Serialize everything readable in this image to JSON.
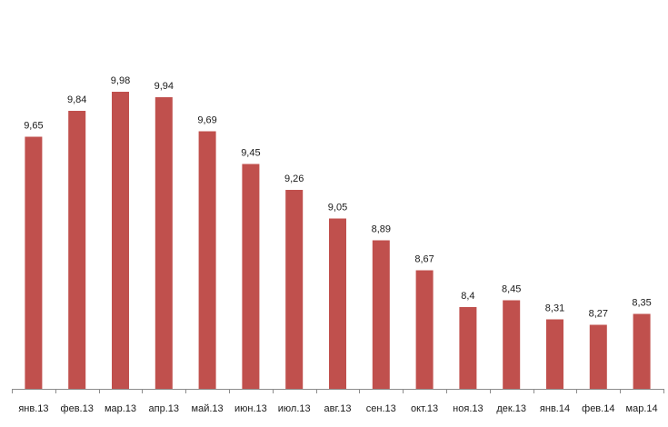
{
  "chart_data": {
    "type": "bar",
    "categories": [
      "янв.13",
      "фев.13",
      "мар.13",
      "апр.13",
      "май.13",
      "июн.13",
      "июл.13",
      "авг.13",
      "сен.13",
      "окт.13",
      "ноя.13",
      "дек.13",
      "янв.14",
      "фев.14",
      "мар.14"
    ],
    "values": [
      9.65,
      9.84,
      9.98,
      9.94,
      9.69,
      9.45,
      9.26,
      9.05,
      8.89,
      8.67,
      8.4,
      8.45,
      8.31,
      8.27,
      8.35
    ],
    "value_labels": [
      "9,65",
      "9,84",
      "9,98",
      "9,94",
      "9,69",
      "9,45",
      "9,26",
      "9,05",
      "8,89",
      "8,67",
      "8,4",
      "8,45",
      "8,31",
      "8,27",
      "8,35"
    ],
    "title": "",
    "xlabel": "",
    "ylabel": "",
    "ylim": [
      7.8,
      10.0
    ],
    "grid": false,
    "legend": "none",
    "bar_color": "#c0504d",
    "axis_color": "#8c8c8c"
  }
}
